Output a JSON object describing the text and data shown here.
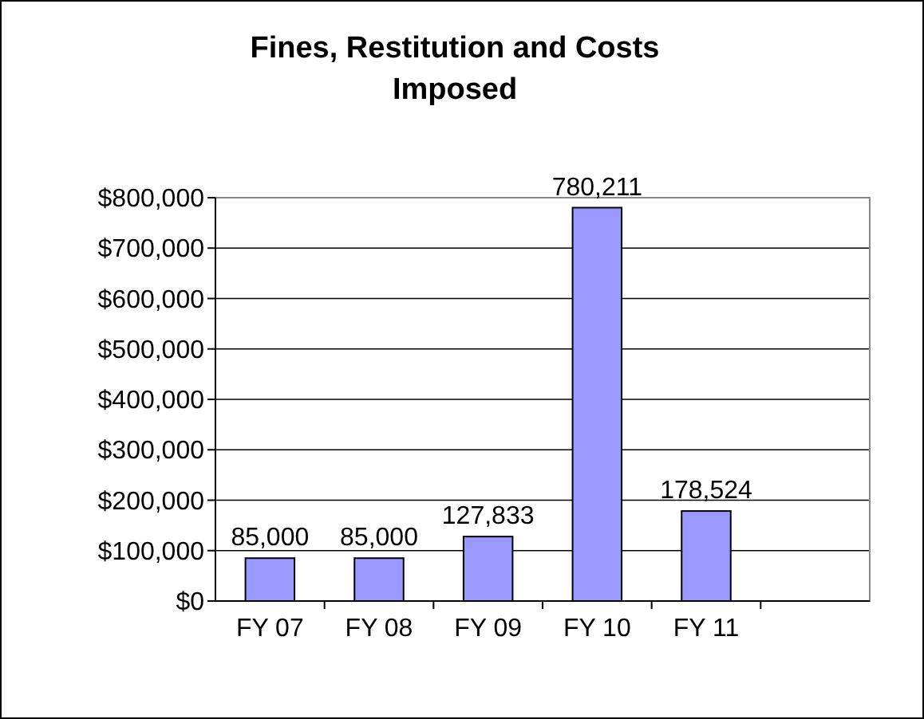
{
  "chart_data": {
    "type": "bar",
    "title": "Fines, Restitution and Costs Imposed",
    "categories": [
      "FY 07",
      "FY 08",
      "FY 09",
      "FY 10",
      "FY 11"
    ],
    "values": [
      85000,
      85000,
      127833,
      780211,
      178524
    ],
    "value_labels": [
      "85,000",
      "85,000",
      "127,833",
      "780,211",
      "178,524"
    ],
    "color": "#9999ff",
    "ylim": [
      0,
      800000
    ],
    "yticks": [
      {
        "value": 0,
        "label": "$0"
      },
      {
        "value": 100000,
        "label": "$100,000"
      },
      {
        "value": 200000,
        "label": "$200,000"
      },
      {
        "value": 300000,
        "label": "$300,000"
      },
      {
        "value": 400000,
        "label": "$400,000"
      },
      {
        "value": 500000,
        "label": "$500,000"
      },
      {
        "value": 600000,
        "label": "$600,000"
      },
      {
        "value": 700000,
        "label": "$700,000"
      },
      {
        "value": 800000,
        "label": "$800,000"
      }
    ],
    "grid": "y"
  }
}
